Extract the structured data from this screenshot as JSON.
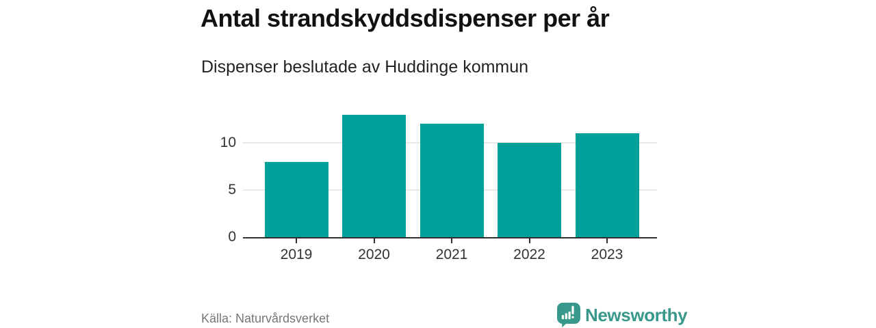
{
  "chart": {
    "title": "Antal strandskyddsdispenser per år",
    "subtitle": "Dispenser beslutade av Huddinge kommun",
    "source": "Källa: Naturvårdsverket"
  },
  "footer": {
    "brand": "Newsworthy"
  },
  "colors": {
    "bar": "#00a09a",
    "brand": "#37988b",
    "axis": "#2e2e2e",
    "grid": "#e9e9e9",
    "label": "#333333",
    "muted": "#767676"
  },
  "chart_data": {
    "type": "bar",
    "categories": [
      "2019",
      "2020",
      "2021",
      "2022",
      "2023"
    ],
    "values": [
      8,
      13,
      12,
      10,
      11
    ],
    "title": "Antal strandskyddsdispenser per år",
    "subtitle": "Dispenser beslutade av Huddinge kommun",
    "xlabel": "",
    "ylabel": "",
    "ylim": [
      0,
      13.55
    ],
    "yticks": [
      0,
      5,
      10
    ],
    "grid": "horizontal-at-yticks",
    "legend": "none",
    "bar_color": "#00a09a",
    "source": "Källa: Naturvårdsverket"
  }
}
